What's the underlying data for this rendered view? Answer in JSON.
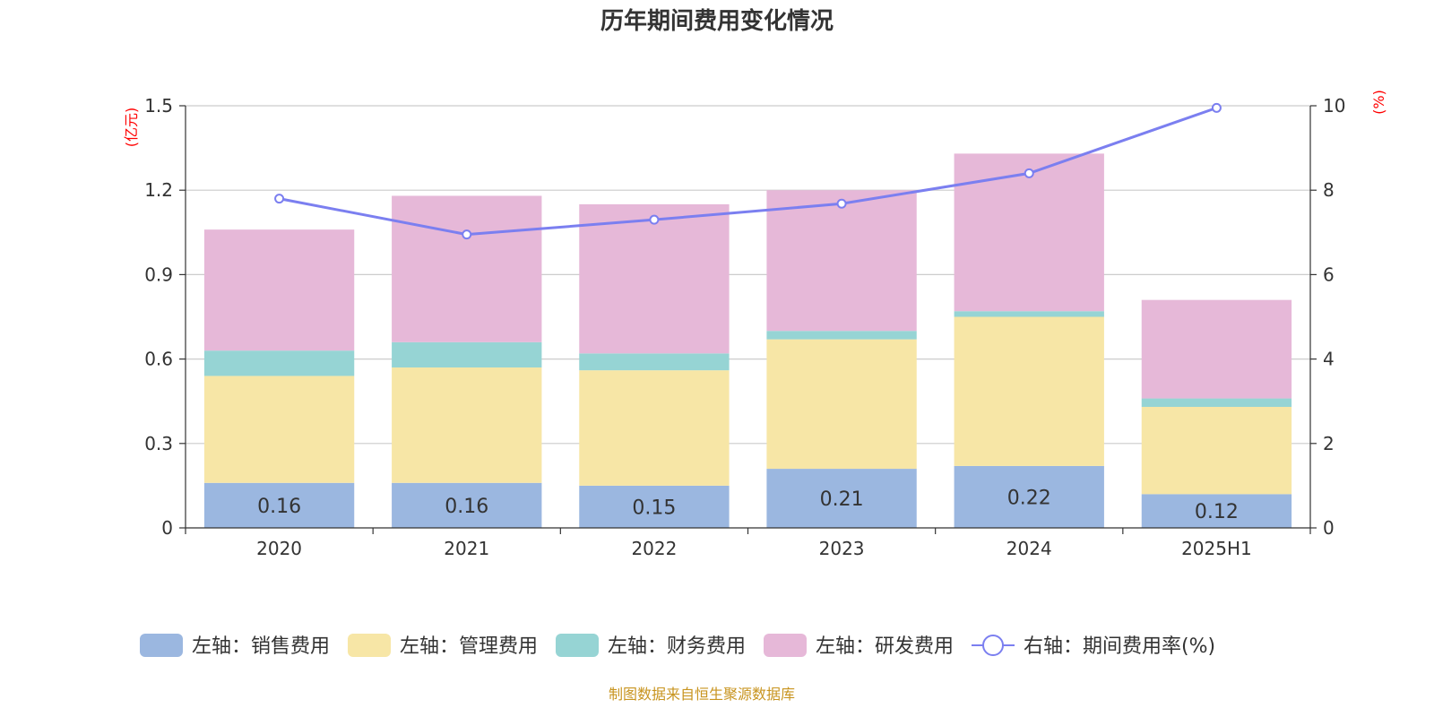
{
  "chart_data": {
    "type": "bar",
    "title": "历年期间费用变化情况",
    "categories": [
      "2020",
      "2021",
      "2022",
      "2023",
      "2024",
      "2025H1"
    ],
    "series": [
      {
        "name": "左轴：销售费用",
        "axis": "left",
        "kind": "bar",
        "color": "#9bb7e0",
        "values": [
          0.16,
          0.16,
          0.15,
          0.21,
          0.22,
          0.12
        ],
        "show_labels": true
      },
      {
        "name": "左轴：管理费用",
        "axis": "left",
        "kind": "bar",
        "color": "#f7e6a6",
        "values": [
          0.38,
          0.41,
          0.41,
          0.46,
          0.53,
          0.31
        ],
        "show_labels": false
      },
      {
        "name": "左轴：财务费用",
        "axis": "left",
        "kind": "bar",
        "color": "#96d4d4",
        "values": [
          0.09,
          0.09,
          0.06,
          0.03,
          0.02,
          0.03
        ],
        "show_labels": false
      },
      {
        "name": "左轴：研发费用",
        "axis": "left",
        "kind": "bar",
        "color": "#e6b8d8",
        "values": [
          0.43,
          0.52,
          0.53,
          0.5,
          0.56,
          0.35
        ],
        "show_labels": false
      },
      {
        "name": "右轴：期间费用率(%)",
        "axis": "right",
        "kind": "line",
        "color": "#7b7ff0",
        "values": [
          7.8,
          6.95,
          7.3,
          7.68,
          8.4,
          9.95
        ],
        "show_labels": false
      }
    ],
    "left_axis": {
      "unit_label": "(亿元)",
      "ylim": [
        0,
        1.5
      ],
      "ticks": [
        0,
        0.3,
        0.6,
        0.9,
        1.2,
        1.5
      ],
      "tick_labels": [
        "0",
        "0.3",
        "0.6",
        "0.9",
        "1.2",
        "1.5"
      ]
    },
    "right_axis": {
      "unit_label": "(%)",
      "ylim": [
        0,
        10
      ],
      "ticks": [
        0,
        2,
        4,
        6,
        8,
        10
      ],
      "tick_labels": [
        "0",
        "2",
        "4",
        "6",
        "8",
        "10"
      ]
    },
    "grid": true,
    "legend_position": "bottom",
    "stacked": true
  },
  "footer": {
    "source_text": "制图数据来自恒生聚源数据库"
  }
}
